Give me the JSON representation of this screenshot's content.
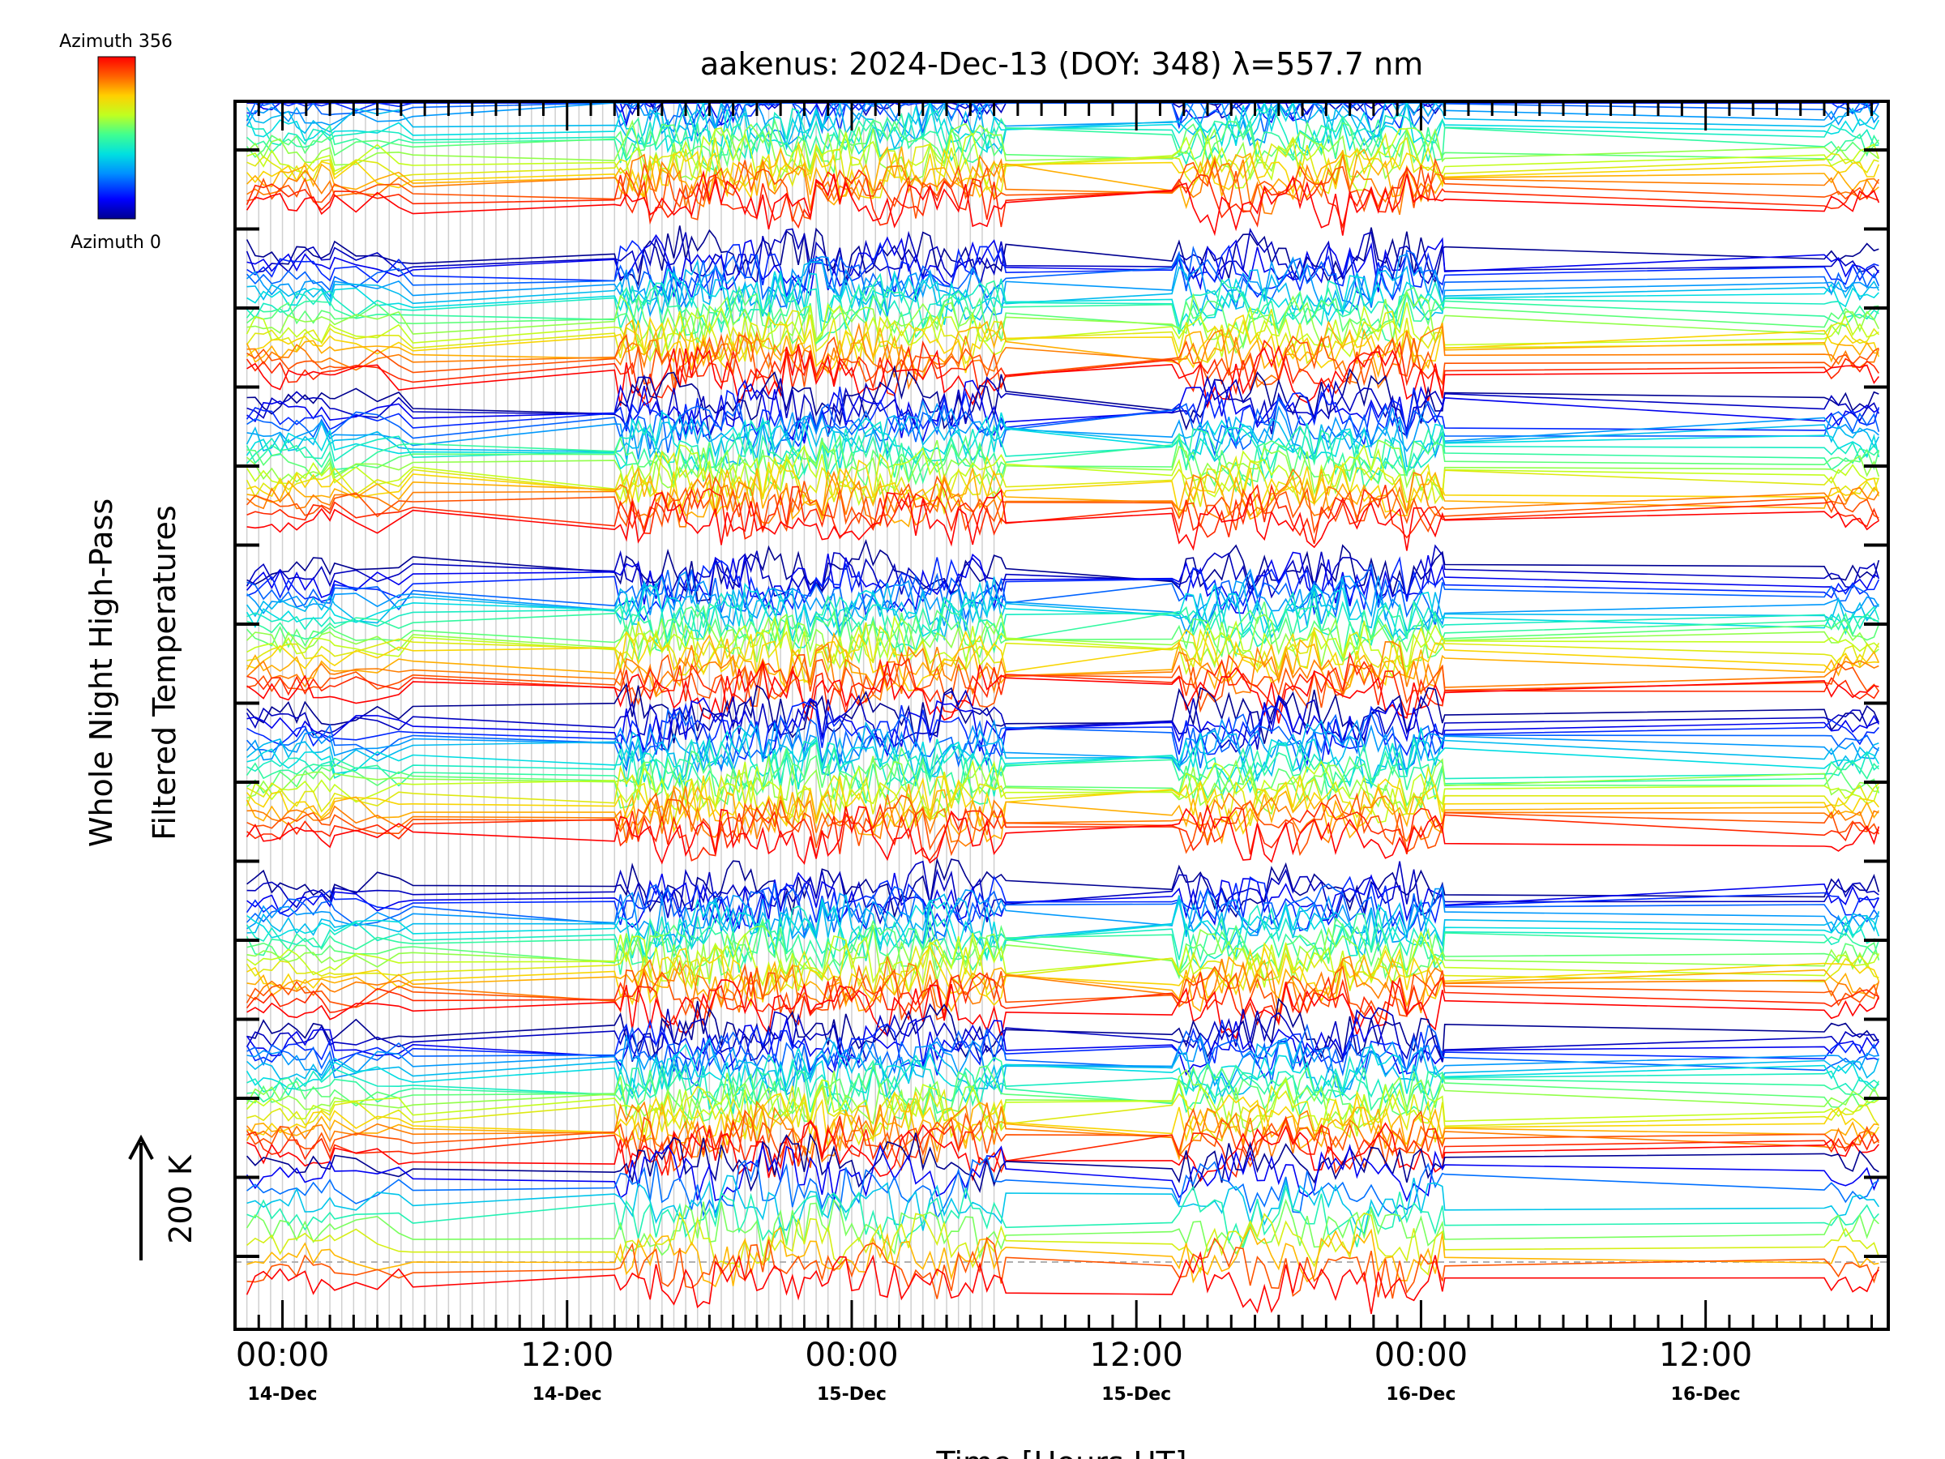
{
  "chart_data": {
    "type": "line",
    "title": "aakenus: 2024-Dec-13 (DOY: 348) λ=557.7 nm",
    "xlabel": "Time [Hours UT]",
    "ylabel_line1": "Whole Night High-Pass",
    "ylabel_line2": "Filtered Temperatures",
    "scale_label": "200 K",
    "scale_kelvin": 200,
    "colorbar": {
      "top_label": "Azimuth  356",
      "bottom_label": "Azimuth  0",
      "azimuth_min": 0,
      "azimuth_max": 356,
      "colormap": [
        "#000090",
        "#0000ff",
        "#0090ff",
        "#00e0e0",
        "#40ff90",
        "#c0ff20",
        "#ffd000",
        "#ff6000",
        "#ff0000"
      ]
    },
    "xlim_hours": [
      -2.0,
      67.7
    ],
    "x_ticks": [
      {
        "h": 0,
        "time": "00:00",
        "date": "14-Dec"
      },
      {
        "h": 12,
        "time": "12:00",
        "date": "14-Dec"
      },
      {
        "h": 24,
        "time": "00:00",
        "date": "15-Dec"
      },
      {
        "h": 36,
        "time": "12:00",
        "date": "15-Dec"
      },
      {
        "h": 48,
        "time": "00:00",
        "date": "16-Dec"
      },
      {
        "h": 60,
        "time": "12:00",
        "date": "16-Dec"
      }
    ],
    "grid_x": true,
    "series_count": 156,
    "observation_periods_hours": [
      [
        -1.5,
        2.2
      ],
      [
        2.2,
        5.5
      ],
      [
        5.5,
        14.0
      ],
      [
        14.0,
        24.0
      ],
      [
        24.0,
        30.5
      ],
      [
        30.5,
        37.5
      ],
      [
        37.5,
        49.0
      ],
      [
        49.0,
        65.0
      ],
      [
        65.0,
        67.3
      ]
    ]
  }
}
